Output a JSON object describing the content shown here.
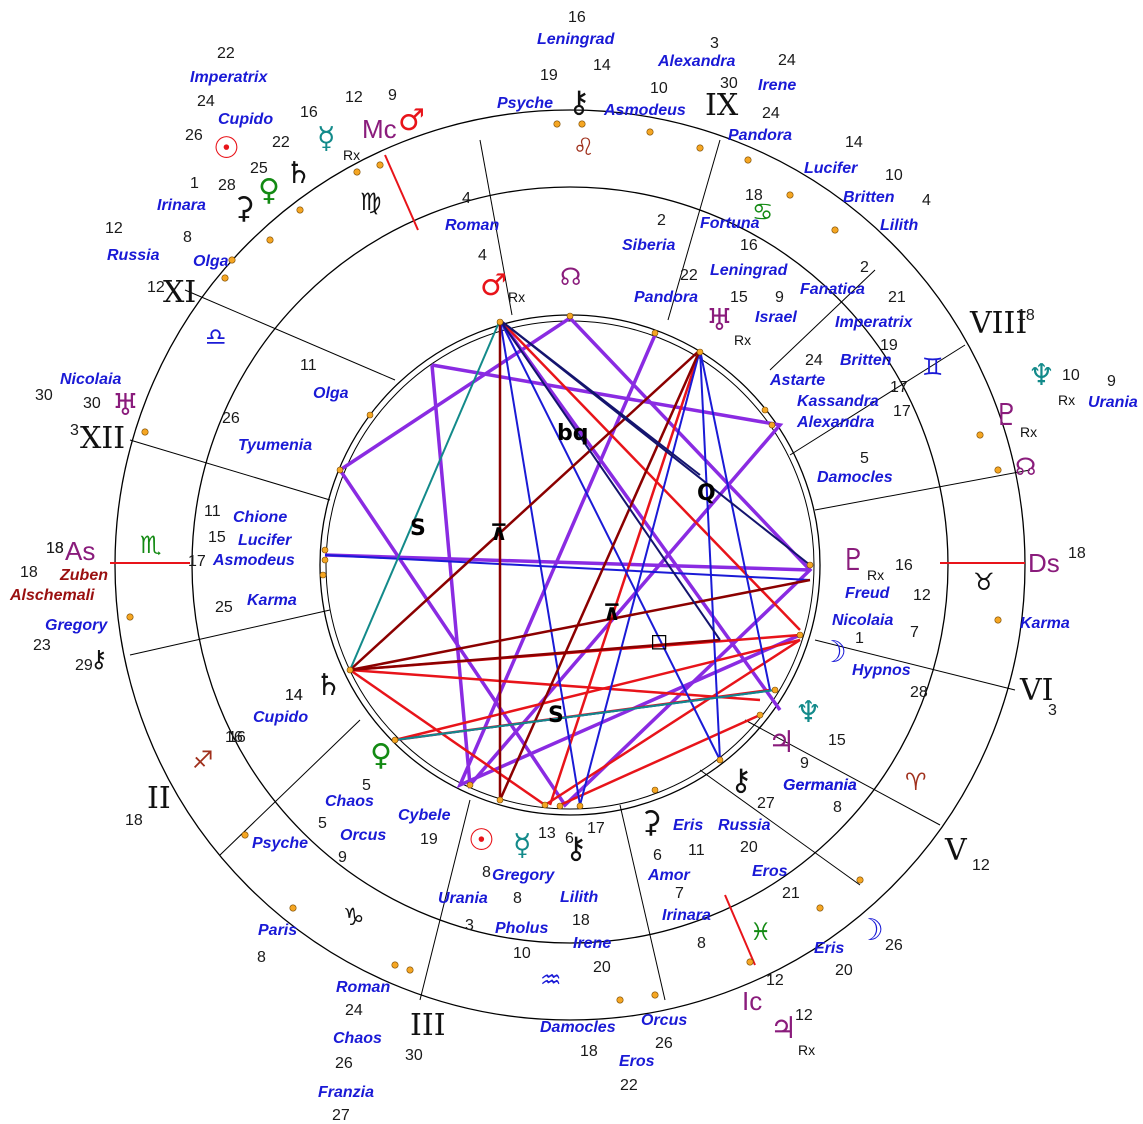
{
  "angles": {
    "asc": "As",
    "asc_deg": "18",
    "dsc": "Ds",
    "dsc_deg": "18",
    "mc": "Mc",
    "mc_deg": "12",
    "ic": "Ic",
    "ic_deg": "12"
  },
  "houses": [
    {
      "label": "XI",
      "deg": "12"
    },
    {
      "label": "IX",
      "deg": ""
    },
    {
      "label": "VIII",
      "deg": "18"
    },
    {
      "label": "XII",
      "deg": "3"
    },
    {
      "label": "VI",
      "deg": "3"
    },
    {
      "label": "V",
      "deg": "12"
    },
    {
      "label": "II",
      "deg": "18"
    },
    {
      "label": "III",
      "deg": "30"
    }
  ],
  "outer_labels": [
    "Leningrad",
    "Alexandra",
    "Irene",
    "Psyche",
    "Asmodeus",
    "Pandora",
    "Imperatrix",
    "Cupido",
    "Irinara",
    "Russia",
    "Olga",
    "Lucifer",
    "Britten",
    "Lilith",
    "Nicolaia",
    "Urania",
    "Zuben",
    "Alschemali",
    "Gregory",
    "Karma",
    "Cupido",
    "Germania",
    "Eris",
    "Paris",
    "Roman",
    "Chaos",
    "Franzia",
    "Damocles",
    "Orcus",
    "Eros"
  ],
  "outer_numbers": [
    "16",
    "3",
    "24",
    "19",
    "14",
    "10",
    "30",
    "24",
    "22",
    "24",
    "26",
    "16",
    "12",
    "9",
    "14",
    "10",
    "4",
    "1",
    "28",
    "25",
    "22",
    "12",
    "8",
    "30",
    "30",
    "10",
    "9",
    "18",
    "18",
    "23",
    "29",
    "14",
    "16",
    "8",
    "26",
    "20",
    "8",
    "24",
    "26",
    "27",
    "18",
    "26",
    "22",
    "12"
  ],
  "inner_labels": [
    "Roman",
    "Siberia",
    "Fortuna",
    "Leningrad",
    "Pandora",
    "Fanatica",
    "Israel",
    "Imperatrix",
    "Britten",
    "Astarte",
    "Kassandra",
    "Alexandra",
    "Damocles",
    "Olga",
    "Tyumenia",
    "Chione",
    "Lucifer",
    "Asmodeus",
    "Karma",
    "Freud",
    "Nicolaia",
    "Hypnos",
    "Germania",
    "Chaos",
    "Orcus",
    "Cybele",
    "Psyche",
    "Gregory",
    "Eris",
    "Russia",
    "Amor",
    "Eros",
    "Irinara",
    "Lilith",
    "Urania",
    "Pholus",
    "Irene",
    "Cupido"
  ],
  "inner_numbers": [
    "4",
    "4",
    "2",
    "18",
    "16",
    "22",
    "15",
    "9",
    "2",
    "21",
    "19",
    "24",
    "17",
    "17",
    "5",
    "11",
    "26",
    "11",
    "15",
    "17",
    "25",
    "16",
    "12",
    "7",
    "1",
    "28",
    "14",
    "16",
    "5",
    "5",
    "9",
    "19",
    "13",
    "6",
    "17",
    "6",
    "11",
    "20",
    "21",
    "8",
    "8",
    "7",
    "18",
    "3",
    "10",
    "20",
    "27",
    "9",
    "15",
    "8"
  ],
  "aspect_labels": [
    "bq",
    "Q",
    "S",
    "S",
    "Q"
  ],
  "signs": [
    "Leo",
    "Virgo",
    "Cancer",
    "Libra",
    "Gemini",
    "Scorpio",
    "Taurus",
    "Sagittarius",
    "Aries",
    "Capricorn",
    "Pisces",
    "Aquarius"
  ],
  "colors": {
    "red": "#e8141a",
    "purple": "#8a2be2",
    "blue": "#1a1ad6",
    "darkred": "#8b0000",
    "navy": "#14146e",
    "teal": "#138a8a",
    "orange": "#f5a623"
  }
}
